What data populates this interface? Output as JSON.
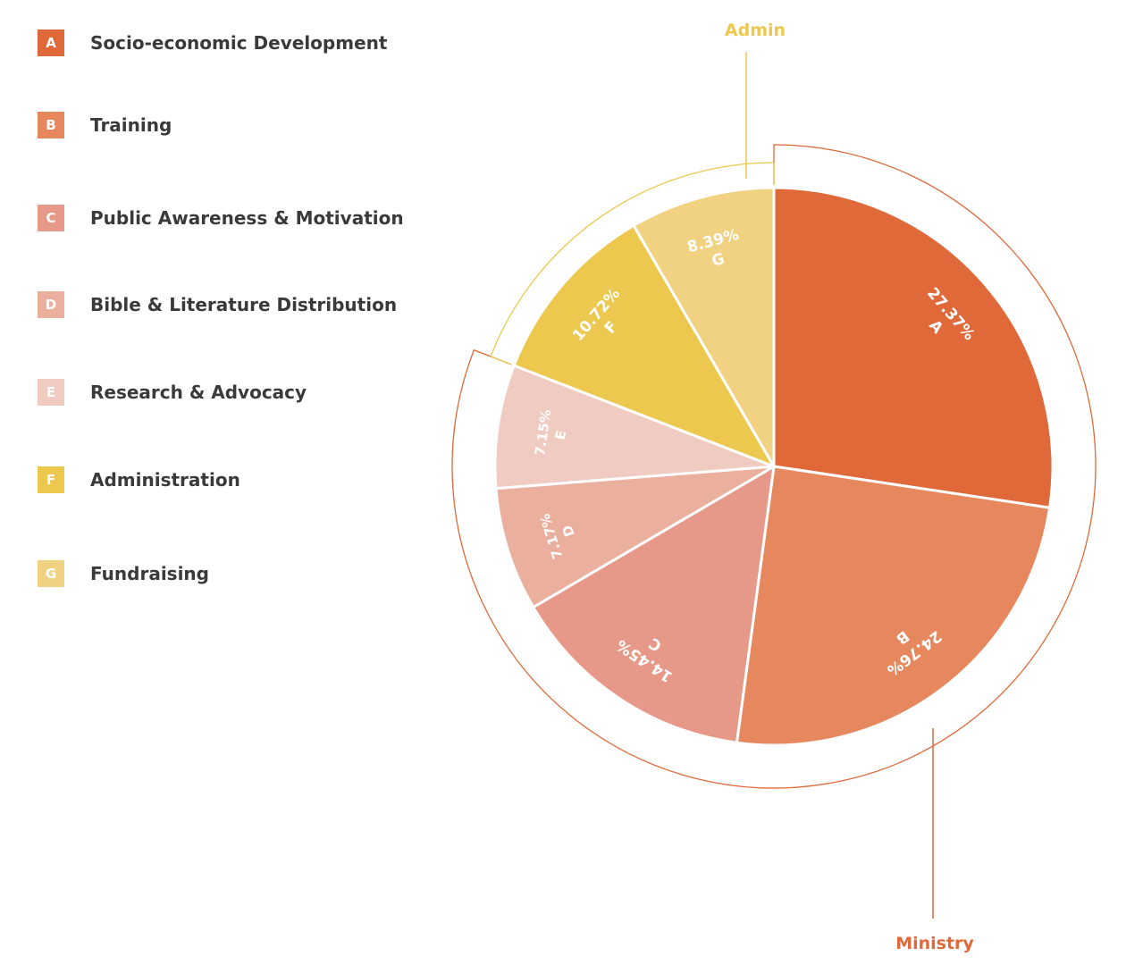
{
  "chart_data": {
    "type": "pie",
    "slices": [
      {
        "letter": "A",
        "label": "Socio-economic Development",
        "value": 27.37,
        "value_text": "27.37%",
        "color": "#E0693A",
        "group": "Ministry"
      },
      {
        "letter": "B",
        "label": "Training",
        "value": 24.76,
        "value_text": "24.76%",
        "color": "#E6875E",
        "group": "Ministry"
      },
      {
        "letter": "C",
        "label": "Public Awareness & Motivation",
        "value": 14.45,
        "value_text": "14.45%",
        "color": "#E69988",
        "group": "Ministry"
      },
      {
        "letter": "D",
        "label": "Bible & Literature Distribution",
        "value": 7.17,
        "value_text": "7.17%",
        "color": "#EBAF9E",
        "group": "Ministry"
      },
      {
        "letter": "E",
        "label": "Research & Advocacy",
        "value": 7.15,
        "value_text": "7.15%",
        "color": "#F0CBC1",
        "group": "Ministry"
      },
      {
        "letter": "F",
        "label": "Administration",
        "value": 10.72,
        "value_text": "10.72%",
        "color": "#ECC84E",
        "group": "Admin"
      },
      {
        "letter": "G",
        "label": "Fundraising",
        "value": 8.39,
        "value_text": "8.39%",
        "color": "#F1D282",
        "group": "Admin"
      }
    ],
    "groups": [
      {
        "name": "Ministry",
        "color": "#E0693A",
        "slices": [
          "A",
          "B",
          "C",
          "D",
          "E"
        ]
      },
      {
        "name": "Admin",
        "color": "#ECC84E",
        "slices": [
          "F",
          "G"
        ]
      }
    ],
    "legend_placement": "left"
  }
}
